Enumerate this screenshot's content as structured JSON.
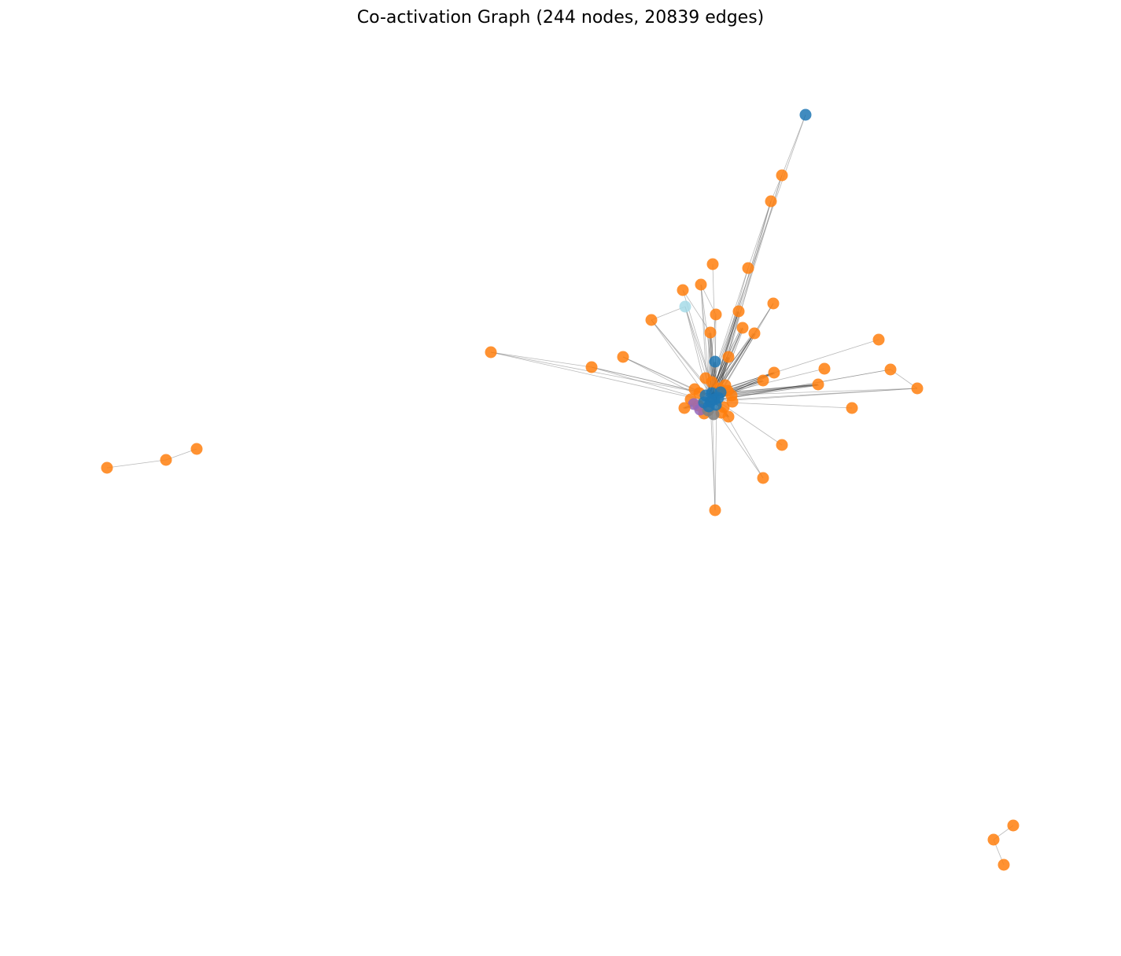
{
  "figure": {
    "title": "Co-activation Graph (244 nodes, 20839 edges)"
  },
  "colors": {
    "orange": "#ff7f0e",
    "blue": "#1f77b4",
    "lightblue": "#a6dbe8",
    "gray": "#7f7f7f",
    "purple": "#9467bd",
    "edge": "#7f7f7f"
  },
  "graph": {
    "node_count": 244,
    "edge_count": 20839,
    "node_colors": [
      "orange",
      "blue",
      "lightblue",
      "gray",
      "purple"
    ]
  }
}
